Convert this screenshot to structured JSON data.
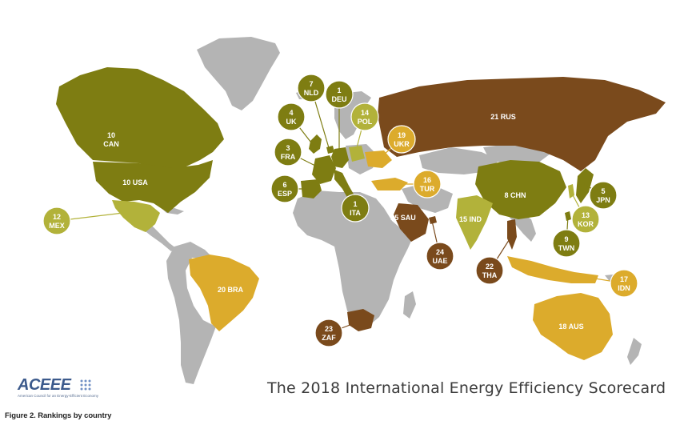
{
  "title": "The 2018 International Energy Efficiency Scorecard",
  "caption": "Figure 2. Rankings by country",
  "logo": {
    "text": "ACEEE",
    "subtitle": "American Council for an Energy-Efficient Economy"
  },
  "colors": {
    "ocean": "#ffffff",
    "unranked": "#b4b4b4",
    "tier_top": "#7e7d12",
    "tier_upper": "#b2b23a",
    "tier_mid": "#dcab2c",
    "tier_low": "#7a4a1c"
  },
  "rankings": [
    {
      "rank": "1",
      "code": "DEU",
      "tier": "tier_top"
    },
    {
      "rank": "1",
      "code": "ITA",
      "tier": "tier_top"
    },
    {
      "rank": "3",
      "code": "FRA",
      "tier": "tier_top"
    },
    {
      "rank": "4",
      "code": "UK",
      "tier": "tier_top"
    },
    {
      "rank": "5",
      "code": "JPN",
      "tier": "tier_top"
    },
    {
      "rank": "6",
      "code": "ESP",
      "tier": "tier_top"
    },
    {
      "rank": "7",
      "code": "NLD",
      "tier": "tier_top"
    },
    {
      "rank": "8",
      "code": "CHN",
      "tier": "tier_top"
    },
    {
      "rank": "9",
      "code": "TWN",
      "tier": "tier_top"
    },
    {
      "rank": "10",
      "code": "CAN",
      "tier": "tier_top"
    },
    {
      "rank": "10",
      "code": "USA",
      "tier": "tier_top"
    },
    {
      "rank": "12",
      "code": "MEX",
      "tier": "tier_upper"
    },
    {
      "rank": "13",
      "code": "KOR",
      "tier": "tier_upper"
    },
    {
      "rank": "14",
      "code": "POL",
      "tier": "tier_upper"
    },
    {
      "rank": "15",
      "code": "IND",
      "tier": "tier_upper"
    },
    {
      "rank": "16",
      "code": "TUR",
      "tier": "tier_mid"
    },
    {
      "rank": "17",
      "code": "IDN",
      "tier": "tier_mid"
    },
    {
      "rank": "18",
      "code": "AUS",
      "tier": "tier_mid"
    },
    {
      "rank": "19",
      "code": "UKR",
      "tier": "tier_mid"
    },
    {
      "rank": "20",
      "code": "BRA",
      "tier": "tier_mid"
    },
    {
      "rank": "21",
      "code": "RUS",
      "tier": "tier_low"
    },
    {
      "rank": "22",
      "code": "THA",
      "tier": "tier_low"
    },
    {
      "rank": "23",
      "code": "ZAF",
      "tier": "tier_low"
    },
    {
      "rank": "24",
      "code": "UAE",
      "tier": "tier_low"
    },
    {
      "rank": "25",
      "code": "SAU",
      "tier": "tier_low"
    }
  ]
}
